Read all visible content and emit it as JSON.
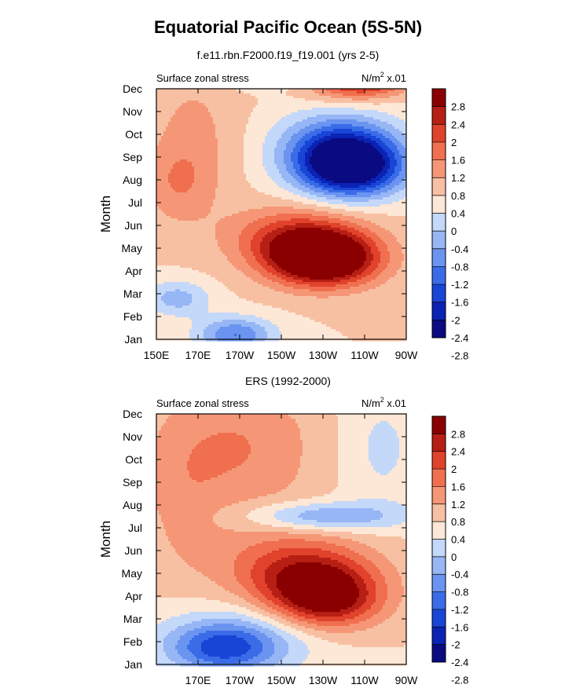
{
  "title": "Equatorial Pacific Ocean (5S-5N)",
  "colors": {
    "palette": [
      "#0a0a82",
      "#0b23b4",
      "#1845d6",
      "#3a6ce8",
      "#6a94f0",
      "#97b6f5",
      "#c4d8fa",
      "#fde7d6",
      "#f8c0a3",
      "#f59777",
      "#ef6f4f",
      "#e0422b",
      "#b81f14",
      "#8a0000"
    ],
    "background": "#ffffff"
  },
  "chart_data": [
    {
      "type": "heatmap",
      "title": "f.e11.rbn.F2000.f19_f19.001 (yrs 2-5)",
      "left_label": "Surface zonal stress",
      "right_label_base": "N/m",
      "right_label_sup": "2",
      "right_label_tail": " x.01",
      "xlabel": "",
      "ylabel": "Month",
      "x_ticks": [
        {
          "label": "150E",
          "lon": 150
        },
        {
          "label": "170E",
          "lon": 170
        },
        {
          "label": "170W",
          "lon": 190
        },
        {
          "label": "150W",
          "lon": 210
        },
        {
          "label": "130W",
          "lon": 230
        },
        {
          "label": "110W",
          "lon": 250
        },
        {
          "label": "90W",
          "lon": 270
        }
      ],
      "xlim": [
        150,
        270
      ],
      "y_ticks": [
        "Jan",
        "Feb",
        "Mar",
        "Apr",
        "May",
        "Jun",
        "Jul",
        "Aug",
        "Sep",
        "Oct",
        "Nov",
        "Dec"
      ],
      "colorbar_labels": [
        "2.8",
        "2.4",
        "2",
        "1.6",
        "1.2",
        "0.8",
        "0.4",
        "0",
        "-0.4",
        "-0.8",
        "-1.2",
        "-1.6",
        "-2",
        "-2.4",
        "-2.8"
      ],
      "contour_levels": [
        -2.8,
        -2.4,
        -2,
        -1.6,
        -1.2,
        -0.8,
        -0.4,
        0,
        0.4,
        0.8,
        1.2,
        1.6,
        2,
        2.4,
        2.8
      ],
      "features": [
        {
          "lon": 230,
          "month": 3.5,
          "value": 3.3,
          "sx": 18,
          "sy": 0.8
        },
        {
          "lon": 218,
          "month": 4.5,
          "value": 1.5,
          "sx": 22,
          "sy": 0.9
        },
        {
          "lon": 243,
          "month": 7.5,
          "value": -3.3,
          "sx": 18,
          "sy": 0.9
        },
        {
          "lon": 238,
          "month": 8.6,
          "value": -1.8,
          "sx": 20,
          "sy": 1.0
        },
        {
          "lon": 188,
          "month": 0.2,
          "value": -1.6,
          "sx": 13,
          "sy": 0.55
        },
        {
          "lon": 160,
          "month": 1.8,
          "value": -1.0,
          "sx": 11,
          "sy": 0.55
        },
        {
          "lon": 198,
          "month": 11.9,
          "value": -1.6,
          "sx": 14,
          "sy": 0.45
        },
        {
          "lon": 250,
          "month": 11.6,
          "value": 2.4,
          "sx": 14,
          "sy": 0.6
        },
        {
          "lon": 168,
          "month": 9.0,
          "value": 0.5,
          "sx": 15,
          "sy": 2.2
        },
        {
          "lon": 160,
          "month": 6.8,
          "value": 0.6,
          "sx": 12,
          "sy": 1.2
        },
        {
          "lon": 236,
          "month": 11.0,
          "value": 0.4,
          "sx": 14,
          "sy": 0.5
        }
      ]
    },
    {
      "type": "heatmap",
      "title": "ERS (1992-2000)",
      "left_label": "Surface zonal stress",
      "right_label_base": "N/m",
      "right_label_sup": "2",
      "right_label_tail": " x.01",
      "xlabel": "",
      "ylabel": "Month",
      "x_ticks": [
        {
          "label": "170E",
          "lon": 170
        },
        {
          "label": "170W",
          "lon": 190
        },
        {
          "label": "150W",
          "lon": 210
        },
        {
          "label": "130W",
          "lon": 230
        },
        {
          "label": "110W",
          "lon": 250
        },
        {
          "label": "90W",
          "lon": 270
        }
      ],
      "xlim": [
        150,
        270
      ],
      "y_ticks": [
        "Jan",
        "Feb",
        "Mar",
        "Apr",
        "May",
        "Jun",
        "Jul",
        "Aug",
        "Sep",
        "Oct",
        "Nov",
        "Dec"
      ],
      "colorbar_labels": [
        "2.8",
        "2.4",
        "2",
        "1.6",
        "1.2",
        "0.8",
        "0.4",
        "0",
        "-0.4",
        "-0.8",
        "-1.2",
        "-1.6",
        "-2",
        "-2.4",
        "-2.8"
      ],
      "contour_levels": [
        -2.8,
        -2.4,
        -2,
        -1.6,
        -1.2,
        -0.8,
        -0.4,
        0,
        0.4,
        0.8,
        1.2,
        1.6,
        2,
        2.4,
        2.8
      ],
      "features": [
        {
          "lon": 232,
          "month": 2.8,
          "value": 2.0,
          "sx": 18,
          "sy": 0.9
        },
        {
          "lon": 222,
          "month": 3.8,
          "value": 1.4,
          "sx": 22,
          "sy": 1.0
        },
        {
          "lon": 215,
          "month": 4.6,
          "value": 0.6,
          "sx": 28,
          "sy": 1.2
        },
        {
          "lon": 230,
          "month": 6.5,
          "value": -1.3,
          "sx": 26,
          "sy": 0.45
        },
        {
          "lon": 182,
          "month": 0.7,
          "value": -1.7,
          "sx": 18,
          "sy": 0.75
        },
        {
          "lon": 190,
          "month": 1.2,
          "value": -0.8,
          "sx": 30,
          "sy": 1.1
        },
        {
          "lon": 222,
          "month": 11.9,
          "value": -1.4,
          "sx": 14,
          "sy": 0.35
        },
        {
          "lon": 190,
          "month": 9.5,
          "value": 0.8,
          "sx": 26,
          "sy": 2.2
        },
        {
          "lon": 258,
          "month": 9.5,
          "value": -0.5,
          "sx": 14,
          "sy": 2.0
        },
        {
          "lon": 162,
          "month": 7.2,
          "value": 0.4,
          "sx": 14,
          "sy": 2.5
        }
      ]
    }
  ]
}
